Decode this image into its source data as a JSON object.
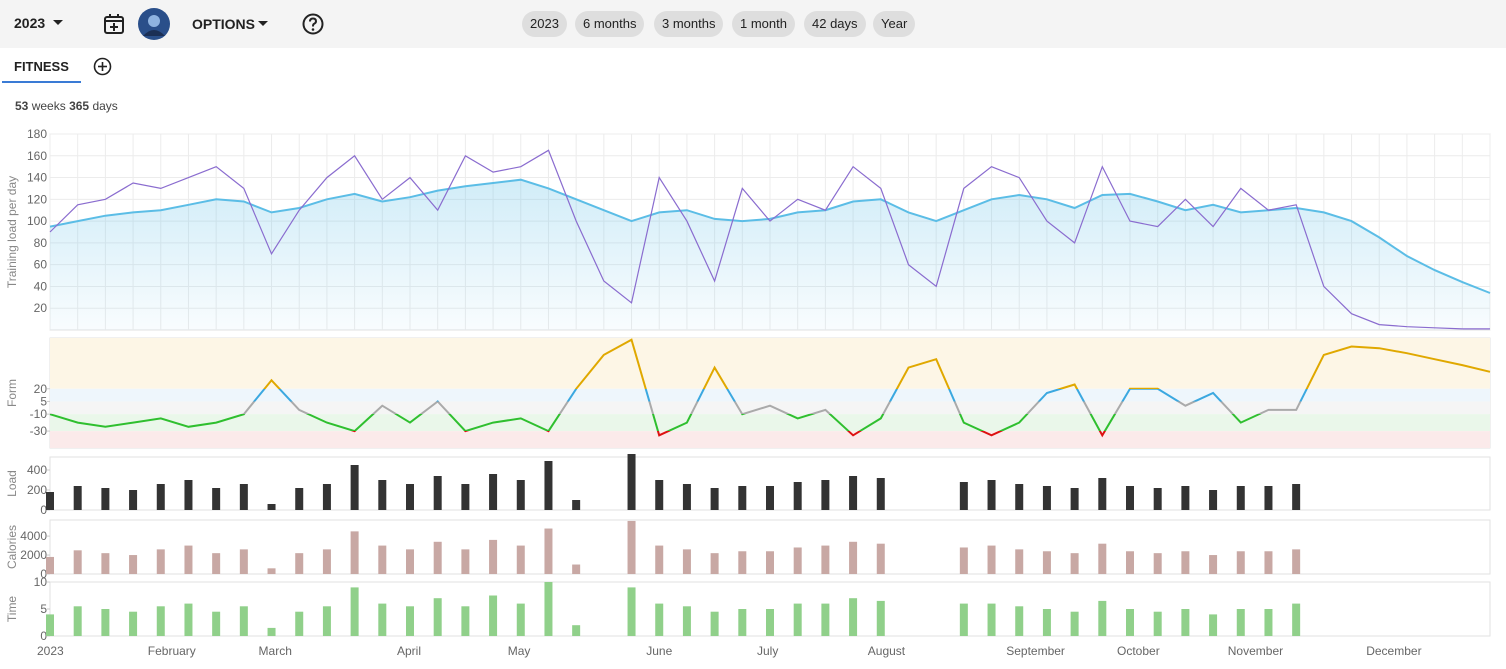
{
  "toolbar": {
    "season": "2023",
    "options": "OPTIONS",
    "ranges": [
      "2023",
      "6 months",
      "3 months",
      "1 month",
      "42 days",
      "Year"
    ]
  },
  "tabs": [
    "FITNESS"
  ],
  "summary": {
    "weeks": 53,
    "weeks_unit": "weeks",
    "days": 365,
    "days_unit": "days"
  },
  "chart_data": [
    {
      "type": "line",
      "ylabel": "Training load per day",
      "ylim": [
        0,
        180
      ],
      "yticks": [
        20,
        40,
        60,
        80,
        100,
        120,
        140,
        160,
        180
      ],
      "grid": true,
      "series": [
        {
          "color": "#5bbde6",
          "area": true,
          "values": [
            95,
            100,
            105,
            108,
            110,
            115,
            120,
            118,
            108,
            112,
            120,
            125,
            118,
            122,
            128,
            132,
            135,
            138,
            130,
            120,
            110,
            100,
            108,
            110,
            102,
            100,
            102,
            108,
            110,
            118,
            120,
            108,
            100,
            110,
            120,
            124,
            120,
            112,
            124,
            125,
            118,
            110,
            115,
            108,
            110,
            112,
            108,
            100,
            85,
            68,
            55,
            44,
            34
          ]
        },
        {
          "color": "#8a6ccf",
          "area": false,
          "values": [
            90,
            115,
            120,
            135,
            130,
            140,
            150,
            130,
            70,
            110,
            140,
            160,
            120,
            140,
            110,
            160,
            145,
            150,
            165,
            100,
            45,
            25,
            140,
            100,
            45,
            130,
            100,
            120,
            110,
            150,
            130,
            60,
            40,
            130,
            150,
            140,
            100,
            80,
            150,
            100,
            95,
            120,
            95,
            130,
            110,
            115,
            40,
            15,
            5,
            3,
            2,
            1,
            1
          ]
        }
      ]
    },
    {
      "type": "line",
      "ylabel": "Form",
      "ylim": [
        -50,
        80
      ],
      "yticks": [
        -30,
        -10,
        5,
        20
      ],
      "zones": [
        {
          "min": 20,
          "max": 80,
          "band": "#fdf6e6",
          "line": "#e0a800"
        },
        {
          "min": 5,
          "max": 20,
          "band": "#eef6fc",
          "line": "#3ba8e0"
        },
        {
          "min": -10,
          "max": 5,
          "band": "#f5f5f5",
          "line": "#aaaaaa"
        },
        {
          "min": -30,
          "max": -10,
          "band": "#eaf7ea",
          "line": "#2fbf2f"
        },
        {
          "min": -50,
          "max": -30,
          "band": "#fbeaea",
          "line": "#dd1111"
        }
      ],
      "values": [
        -10,
        -20,
        -25,
        -20,
        -15,
        -25,
        -20,
        -10,
        30,
        -5,
        -20,
        -30,
        0,
        -20,
        5,
        -30,
        -20,
        -15,
        -30,
        20,
        60,
        78,
        -35,
        -20,
        45,
        -10,
        0,
        -15,
        -5,
        -35,
        -15,
        45,
        55,
        -20,
        -35,
        -20,
        15,
        25,
        -35,
        20,
        20,
        0,
        15,
        -20,
        -5,
        -5,
        60,
        70,
        68,
        62,
        55,
        48,
        40
      ]
    },
    {
      "type": "bar",
      "ylabel": "Load",
      "ylim": [
        0,
        530
      ],
      "yticks": [
        0,
        200,
        400
      ],
      "color": "#333333",
      "values": [
        180,
        240,
        220,
        200,
        260,
        300,
        220,
        260,
        60,
        220,
        260,
        450,
        300,
        260,
        340,
        260,
        360,
        300,
        490,
        100,
        0,
        560,
        300,
        260,
        220,
        240,
        240,
        280,
        300,
        340,
        320,
        0,
        0,
        280,
        300,
        260,
        240,
        220,
        320,
        240,
        220,
        240,
        200,
        240,
        240,
        260,
        0,
        0,
        0,
        0,
        0,
        0,
        0
      ]
    },
    {
      "type": "bar",
      "ylabel": "Calories",
      "ylim": [
        0,
        5700
      ],
      "yticks": [
        0,
        2000,
        4000
      ],
      "color": "#c8a8a4",
      "values": [
        1800,
        2500,
        2200,
        2000,
        2600,
        3000,
        2200,
        2600,
        600,
        2200,
        2600,
        4500,
        3000,
        2600,
        3400,
        2600,
        3600,
        3000,
        4800,
        1000,
        0,
        5600,
        3000,
        2600,
        2200,
        2400,
        2400,
        2800,
        3000,
        3400,
        3200,
        0,
        0,
        2800,
        3000,
        2600,
        2400,
        2200,
        3200,
        2400,
        2200,
        2400,
        2000,
        2400,
        2400,
        2600,
        0,
        0,
        0,
        0,
        0,
        0,
        0
      ]
    },
    {
      "type": "bar",
      "ylabel": "Time",
      "ylim": [
        0,
        10
      ],
      "yticks": [
        0,
        5,
        10
      ],
      "color": "#90d08a",
      "values": [
        4,
        5.5,
        5,
        4.5,
        5.5,
        6,
        4.5,
        5.5,
        1.5,
        4.5,
        5.5,
        9,
        6,
        5.5,
        7,
        5.5,
        7.5,
        6,
        10,
        2,
        0,
        9,
        6,
        5.5,
        4.5,
        5,
        5,
        6,
        6,
        7,
        6.5,
        0,
        0,
        6,
        6,
        5.5,
        5,
        4.5,
        6.5,
        5,
        4.5,
        5,
        4,
        5,
        5,
        6,
        0,
        0,
        0,
        0,
        0,
        0,
        0
      ],
      "categories": [
        "2023",
        null,
        null,
        null,
        "February",
        null,
        null,
        null,
        "March",
        null,
        null,
        null,
        null,
        "April",
        null,
        null,
        null,
        "May",
        null,
        null,
        null,
        null,
        "June",
        null,
        null,
        null,
        "July",
        null,
        null,
        null,
        "August",
        null,
        null,
        null,
        null,
        "September",
        null,
        null,
        null,
        "October",
        null,
        null,
        null,
        "November",
        null,
        null,
        null,
        null,
        "December",
        null,
        null,
        null,
        null
      ]
    }
  ]
}
